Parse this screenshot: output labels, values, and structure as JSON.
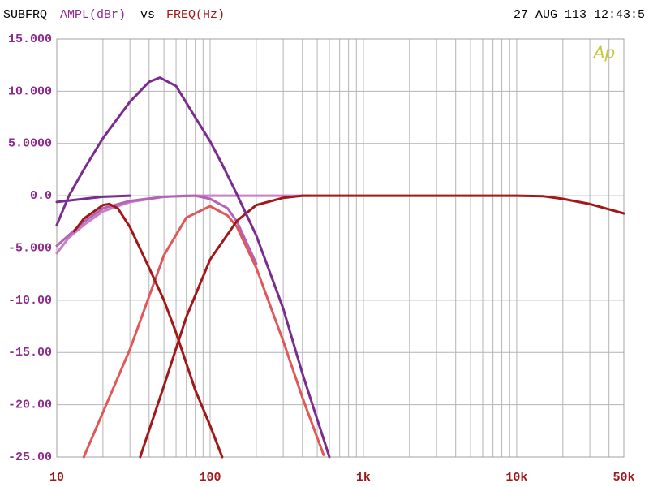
{
  "chart_data": {
    "type": "line",
    "header": {
      "name": "SUBFRQ",
      "y_label": "AMPL(dBr)",
      "vs": "vs",
      "x_label": "FREQ(Hz)",
      "timestamp": "27 AUG 113 12:43:5",
      "logo": "Ap"
    },
    "x_log": true,
    "grid": true,
    "minor_grid": true,
    "y_label_color": "#8b2d8b",
    "x_label_color": "#a01818",
    "xlim": [
      10,
      50000
    ],
    "xticks": [
      10,
      100,
      {
        "value": 1000,
        "label": "1k"
      },
      {
        "value": 10000,
        "label": "10k"
      },
      {
        "value": 50000,
        "label": "50k"
      }
    ],
    "ylim": [
      -25,
      15
    ],
    "yticks": [
      {
        "value": 15,
        "label": "15.000"
      },
      {
        "value": 10,
        "label": "10.000"
      },
      {
        "value": 5,
        "label": "5.0000"
      },
      {
        "value": 0,
        "label": "0.0"
      },
      {
        "value": -5,
        "label": "-5.000"
      },
      {
        "value": -10,
        "label": "-10.00"
      },
      {
        "value": -15,
        "label": "-15.00"
      },
      {
        "value": -20,
        "label": "-20.00"
      },
      {
        "value": -25,
        "label": "-25.00"
      }
    ],
    "series": [
      {
        "color": "#c77fc6",
        "x": [
          10,
          12,
          15,
          20,
          30,
          50,
          70,
          100,
          200,
          450
        ],
        "values": [
          -5.5,
          -4,
          -2.8,
          -1.5,
          -0.6,
          -0.1,
          0,
          0,
          0,
          0
        ]
      },
      {
        "color": "#b464b4",
        "x": [
          10,
          15,
          20,
          30,
          50,
          80,
          100,
          130,
          150,
          200
        ],
        "values": [
          -4.8,
          -2.5,
          -1.2,
          -0.5,
          -0.1,
          0,
          -0.3,
          -1.2,
          -2.5,
          -6.5
        ]
      },
      {
        "color": "#e0585a",
        "x": [
          15,
          30,
          50,
          70,
          100,
          130,
          150,
          200,
          300,
          400,
          550
        ],
        "values": [
          -25,
          -14.7,
          -5.7,
          -2.1,
          -1,
          -1.9,
          -3,
          -6.9,
          -13.9,
          -19.3,
          -24.8
        ]
      },
      {
        "color": "#a01818",
        "x": [
          13,
          15,
          20,
          22,
          25,
          30,
          40,
          50,
          60,
          80,
          100,
          120
        ],
        "values": [
          -3.4,
          -2.2,
          -0.9,
          -0.8,
          -1.2,
          -3,
          -6.9,
          -10,
          -13.1,
          -18.6,
          -22,
          -25
        ]
      },
      {
        "color": "#a01818",
        "x": [
          35,
          50,
          70,
          100,
          150,
          200,
          300,
          400,
          1000,
          10000,
          15000,
          20000,
          30000,
          40000,
          50000
        ],
        "values": [
          -25,
          -18.2,
          -11.6,
          -6.1,
          -2.4,
          -0.9,
          -0.2,
          0,
          0,
          0,
          -0.05,
          -0.3,
          -0.8,
          -1.3,
          -1.7
        ]
      },
      {
        "color": "#7b2d8f",
        "x": [
          10,
          15,
          20,
          30
        ],
        "values": [
          -0.6,
          -0.3,
          -0.1,
          0
        ]
      },
      {
        "color": "#7b2d8f",
        "x": [
          10,
          12,
          15,
          20,
          30,
          40,
          47,
          60,
          80,
          100,
          120,
          150,
          200,
          300,
          400,
          600
        ],
        "values": [
          -2.8,
          0,
          2.5,
          5.5,
          9,
          10.9,
          11.3,
          10.5,
          7.5,
          5.2,
          3,
          0.1,
          -3.8,
          -10.8,
          -17,
          -25
        ]
      }
    ]
  }
}
